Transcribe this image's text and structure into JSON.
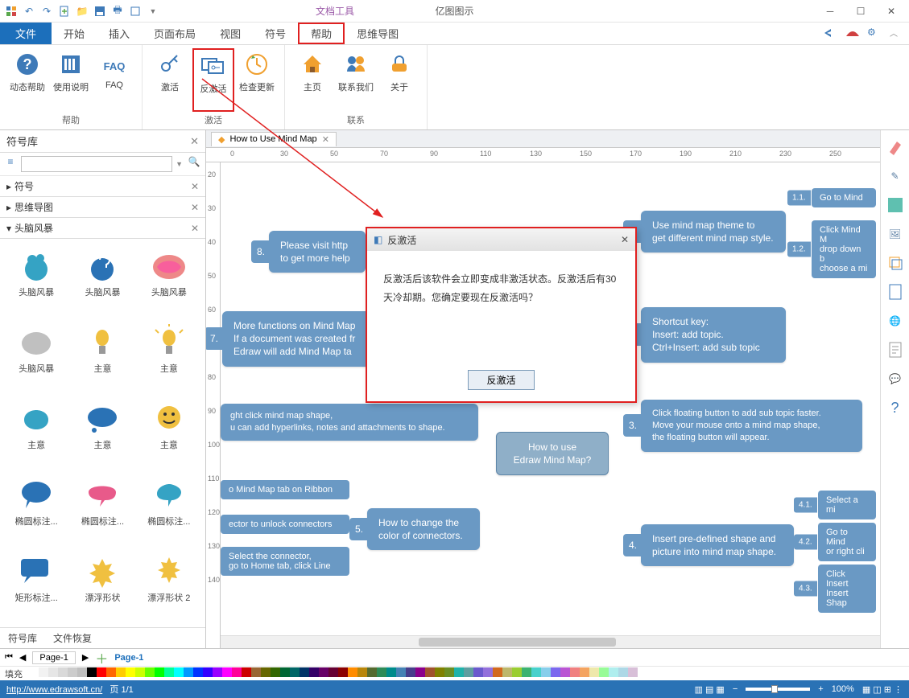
{
  "titlebar": {
    "context_tool": "文档工具",
    "app_name": "亿图图示"
  },
  "menu": {
    "file": "文件",
    "start": "开始",
    "insert": "插入",
    "layout": "页面布局",
    "view": "视图",
    "symbol": "符号",
    "help": "帮助",
    "mindmap": "思维导图"
  },
  "ribbon": {
    "help_group": "帮助",
    "activate_group": "激活",
    "contact_group": "联系",
    "dynamic_help": "动态帮助",
    "manual": "使用说明",
    "faq": "FAQ",
    "activate": "激活",
    "deactivate": "反激活",
    "check_update": "检查更新",
    "home": "主页",
    "contact_us": "联系我们",
    "about": "关于"
  },
  "sidebar": {
    "title": "符号库",
    "search_placeholder": "",
    "sections": {
      "symbol": "符号",
      "mindmap": "思维导图",
      "brainstorm": "头脑风暴"
    },
    "shapes": [
      "头脑风暴",
      "头脑风暴",
      "头脑风暴",
      "头脑风暴",
      "主意",
      "主意",
      "主意",
      "主意",
      "主意",
      "椭圆标注...",
      "椭圆标注...",
      "椭圆标注...",
      "矩形标注...",
      "漂浮形状",
      "漂浮形状 2"
    ],
    "tab_library": "符号库",
    "tab_restore": "文件恢复"
  },
  "doc": {
    "tab_title": "How to Use Mind Map"
  },
  "ruler_h": [
    0,
    30,
    50,
    70,
    90,
    110,
    130,
    150,
    170,
    190,
    210,
    230,
    250
  ],
  "ruler_v": [
    20,
    30,
    40,
    50,
    60,
    70,
    80,
    90,
    100,
    110,
    120,
    130,
    140
  ],
  "mindmap": {
    "center": "How to use\nEdraw Mind Map?",
    "n1": {
      "num": "1.",
      "text": "Use mind map theme to\nget different mind map style."
    },
    "n1_1": {
      "num": "1.1.",
      "text": "Go to Mind "
    },
    "n1_2": {
      "num": "1.2.",
      "text": "Click Mind M\ndrop down b\nchoose a mi"
    },
    "n2": {
      "num": "2.",
      "text": "Shortcut key:\nInsert: add topic.\nCtrl+Insert: add sub topic"
    },
    "n3": {
      "num": "3.",
      "text": "Click floating button to add sub topic faster.\nMove your mouse onto a mind map shape,\nthe floating button will appear."
    },
    "n4": {
      "num": "4.",
      "text": "Insert pre-defined shape and\npicture into mind map shape."
    },
    "n4_1": {
      "num": "4.1.",
      "text": "Select a mi"
    },
    "n4_2": {
      "num": "4.2.",
      "text": "Go to Mind\nor right cli"
    },
    "n4_3": {
      "num": "4.3.",
      "text": "Click Insert\nInsert Shap"
    },
    "n5": {
      "num": "5.",
      "text": "How to change the\ncolor of connectors."
    },
    "n5a": "o Mind Map tab on Ribbon",
    "n5b": "ector to unlock connectors",
    "n5c": "Select the connector,\ngo to Home tab, click Line",
    "n6": "ght click mind map shape,\nu can add hyperlinks, notes and attachments to shape.",
    "n7": {
      "num": "7.",
      "text": "More functions on Mind Map\nIf a document was created fr\nEdraw will add Mind Map ta"
    },
    "n8": {
      "num": "8.",
      "text": "Please visit http\nto get more help"
    }
  },
  "dialog": {
    "title": "反激活",
    "body": "反激活后该软件会立即变成非激活状态。反激活后有30天冷却期。您确定要现在反激活吗？",
    "button": "反激活"
  },
  "page_bar": {
    "page_selector": "Page-1",
    "page_label": "Page-1"
  },
  "color_bar_label": "填充",
  "swatches": [
    "#ffffff",
    "#f2f2f2",
    "#e6e6e6",
    "#d9d9d9",
    "#cccccc",
    "#bfbfbf",
    "#000000",
    "#ff0000",
    "#ff6600",
    "#ffcc00",
    "#ffff00",
    "#ccff00",
    "#66ff00",
    "#00ff00",
    "#00ff99",
    "#00ffff",
    "#0099ff",
    "#0033ff",
    "#3300ff",
    "#9900ff",
    "#ff00ff",
    "#ff0099",
    "#cc0000",
    "#996633",
    "#666600",
    "#336600",
    "#006633",
    "#006666",
    "#003366",
    "#330066",
    "#660066",
    "#660033",
    "#8b0000",
    "#ff8c00",
    "#b8860b",
    "#556b2f",
    "#2e8b57",
    "#008b8b",
    "#4682b4",
    "#483d8b",
    "#8b008b",
    "#a0522d",
    "#808000",
    "#6b8e23",
    "#20b2aa",
    "#5f9ea0",
    "#6a5acd",
    "#9370db",
    "#d2691e",
    "#bdb76b",
    "#9acd32",
    "#3cb371",
    "#48d1cc",
    "#87ceeb",
    "#7b68ee",
    "#ba55d3",
    "#f08080",
    "#f4a460",
    "#eee8aa",
    "#98fb98",
    "#afeeee",
    "#add8e6",
    "#d8bfd8"
  ],
  "status": {
    "url": "http://www.edrawsoft.cn/",
    "page": "页 1/1",
    "zoom": "100%"
  },
  "colors": {
    "accent_blue": "#1c6fbb",
    "node_blue": "#6a99c4",
    "highlight_red": "#e02020"
  }
}
